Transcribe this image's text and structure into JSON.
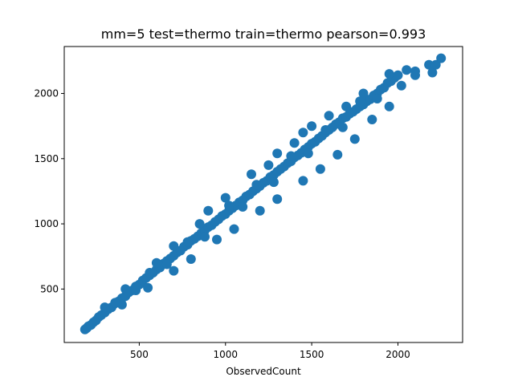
{
  "chart_data": {
    "type": "scatter",
    "title": "mm=5 test=thermo train=thermo pearson=0.993",
    "xlabel": "ObservedCount",
    "ylabel": "",
    "xlim": [
      65,
      2375
    ],
    "ylim": [
      90,
      2360
    ],
    "xticks": [
      500,
      1000,
      1500,
      2000
    ],
    "yticks": [
      500,
      1000,
      1500,
      2000
    ],
    "grid": false,
    "marker_color": "#1f77b4",
    "series": [
      {
        "points": [
          [
            185,
            190
          ],
          [
            195,
            200
          ],
          [
            205,
            215
          ],
          [
            220,
            225
          ],
          [
            235,
            245
          ],
          [
            250,
            260
          ],
          [
            265,
            285
          ],
          [
            280,
            300
          ],
          [
            300,
            320
          ],
          [
            320,
            345
          ],
          [
            340,
            360
          ],
          [
            360,
            390
          ],
          [
            380,
            405
          ],
          [
            400,
            430
          ],
          [
            420,
            445
          ],
          [
            440,
            475
          ],
          [
            460,
            490
          ],
          [
            480,
            520
          ],
          [
            500,
            535
          ],
          [
            520,
            565
          ],
          [
            540,
            585
          ],
          [
            560,
            605
          ],
          [
            580,
            625
          ],
          [
            600,
            650
          ],
          [
            620,
            665
          ],
          [
            640,
            695
          ],
          [
            660,
            715
          ],
          [
            680,
            735
          ],
          [
            700,
            755
          ],
          [
            720,
            780
          ],
          [
            740,
            795
          ],
          [
            760,
            825
          ],
          [
            780,
            840
          ],
          [
            800,
            870
          ],
          [
            820,
            885
          ],
          [
            840,
            905
          ],
          [
            860,
            930
          ],
          [
            880,
            950
          ],
          [
            900,
            975
          ],
          [
            920,
            990
          ],
          [
            940,
            1015
          ],
          [
            960,
            1035
          ],
          [
            980,
            1060
          ],
          [
            1000,
            1075
          ],
          [
            1020,
            1100
          ],
          [
            1040,
            1120
          ],
          [
            1060,
            1140
          ],
          [
            1080,
            1165
          ],
          [
            1100,
            1180
          ],
          [
            1120,
            1210
          ],
          [
            1140,
            1225
          ],
          [
            1160,
            1250
          ],
          [
            1180,
            1270
          ],
          [
            1200,
            1290
          ],
          [
            1220,
            1315
          ],
          [
            1240,
            1330
          ],
          [
            1260,
            1360
          ],
          [
            1280,
            1375
          ],
          [
            1300,
            1400
          ],
          [
            1320,
            1420
          ],
          [
            1340,
            1440
          ],
          [
            1360,
            1465
          ],
          [
            1380,
            1480
          ],
          [
            1400,
            1510
          ],
          [
            1420,
            1525
          ],
          [
            1440,
            1545
          ],
          [
            1460,
            1570
          ],
          [
            1480,
            1590
          ],
          [
            1500,
            1615
          ],
          [
            1520,
            1630
          ],
          [
            1540,
            1655
          ],
          [
            1560,
            1675
          ],
          [
            1580,
            1700
          ],
          [
            1600,
            1720
          ],
          [
            1620,
            1740
          ],
          [
            1640,
            1765
          ],
          [
            1660,
            1780
          ],
          [
            1680,
            1810
          ],
          [
            1700,
            1820
          ],
          [
            1720,
            1845
          ],
          [
            1740,
            1860
          ],
          [
            1760,
            1880
          ],
          [
            1780,
            1900
          ],
          [
            1800,
            1915
          ],
          [
            1820,
            1940
          ],
          [
            1840,
            1955
          ],
          [
            1860,
            1985
          ],
          [
            1880,
            2000
          ],
          [
            1900,
            2030
          ],
          [
            1920,
            2045
          ],
          [
            1940,
            2080
          ],
          [
            1960,
            2095
          ],
          [
            1980,
            2120
          ],
          [
            2000,
            2140
          ],
          [
            300,
            360
          ],
          [
            420,
            500
          ],
          [
            600,
            700
          ],
          [
            700,
            830
          ],
          [
            850,
            1000
          ],
          [
            900,
            1100
          ],
          [
            1000,
            1200
          ],
          [
            1150,
            1380
          ],
          [
            1250,
            1450
          ],
          [
            1300,
            1540
          ],
          [
            1400,
            1620
          ],
          [
            1450,
            1700
          ],
          [
            1500,
            1750
          ],
          [
            1600,
            1830
          ],
          [
            1700,
            1900
          ],
          [
            1800,
            2000
          ],
          [
            1950,
            2150
          ],
          [
            2050,
            2180
          ],
          [
            2100,
            2170
          ],
          [
            2180,
            2220
          ],
          [
            400,
            380
          ],
          [
            550,
            510
          ],
          [
            700,
            640
          ],
          [
            800,
            730
          ],
          [
            950,
            880
          ],
          [
            1050,
            960
          ],
          [
            1200,
            1100
          ],
          [
            1300,
            1190
          ],
          [
            1450,
            1330
          ],
          [
            1550,
            1420
          ],
          [
            1650,
            1530
          ],
          [
            1750,
            1650
          ],
          [
            1850,
            1800
          ],
          [
            1950,
            1900
          ],
          [
            2020,
            2060
          ],
          [
            2100,
            2140
          ],
          [
            2200,
            2160
          ],
          [
            2220,
            2220
          ],
          [
            2250,
            2270
          ],
          [
            360,
            395
          ],
          [
            480,
            490
          ],
          [
            560,
            625
          ],
          [
            660,
            690
          ],
          [
            780,
            860
          ],
          [
            880,
            900
          ],
          [
            1020,
            1140
          ],
          [
            1100,
            1130
          ],
          [
            1180,
            1300
          ],
          [
            1280,
            1320
          ],
          [
            1380,
            1520
          ],
          [
            1480,
            1540
          ],
          [
            1580,
            1720
          ],
          [
            1680,
            1740
          ],
          [
            1780,
            1940
          ],
          [
            1880,
            1960
          ]
        ]
      }
    ]
  }
}
